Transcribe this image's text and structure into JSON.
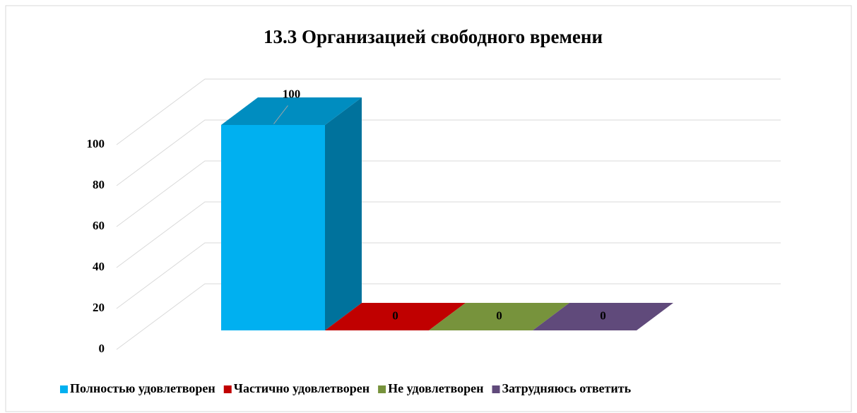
{
  "chart_data": {
    "type": "bar3d",
    "title": "13.3 Организацией  свободного  времени",
    "series": [
      {
        "name": "Полностью удовлетворен",
        "color": "#00b0f0",
        "values": [
          100
        ]
      },
      {
        "name": "Частично удовлетворен",
        "color": "#c00000",
        "values": [
          0
        ]
      },
      {
        "name": "Не удовлетворен",
        "color": "#77933c",
        "values": [
          0
        ]
      },
      {
        "name": "Затрудняюсь ответить",
        "color": "#604a7b",
        "values": [
          0
        ]
      }
    ],
    "ylim": [
      0,
      100
    ],
    "yticks": [
      0,
      20,
      40,
      60,
      80,
      100
    ],
    "grid": true,
    "legend": "bottom"
  }
}
